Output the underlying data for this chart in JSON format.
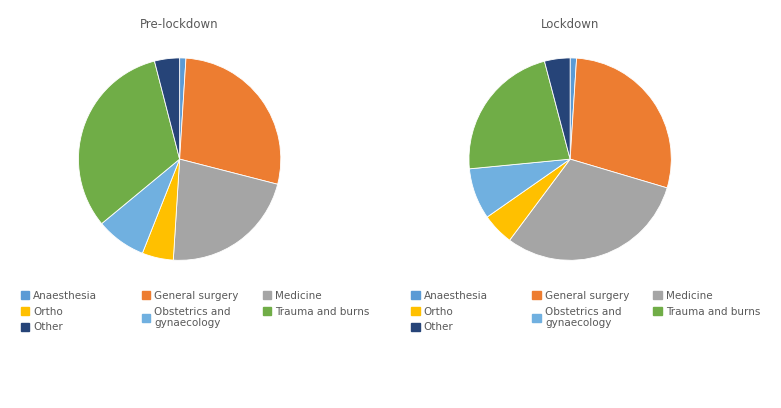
{
  "pre_lockdown": {
    "title": "Pre-lockdown",
    "values": [
      1,
      28,
      22,
      5,
      8,
      32,
      4
    ],
    "colors": [
      "#5b9bd5",
      "#ed7d31",
      "#a5a5a5",
      "#ffc000",
      "#70b0e0",
      "#70ad47",
      "#264478"
    ]
  },
  "lockdown": {
    "title": "Lockdown",
    "values": [
      1,
      28,
      30,
      5,
      8,
      22,
      4
    ],
    "colors": [
      "#5b9bd5",
      "#ed7d31",
      "#a5a5a5",
      "#ffc000",
      "#70b0e0",
      "#70ad47",
      "#264478"
    ]
  },
  "legend_labels": [
    "Anaesthesia",
    "General surgery",
    "Medicine",
    "Ortho",
    "Obstetrics and\ngynaecology",
    "Trauma and burns",
    "Other"
  ],
  "legend_colors": [
    "#5b9bd5",
    "#ed7d31",
    "#a5a5a5",
    "#ffc000",
    "#70b0e0",
    "#70ad47",
    "#264478"
  ],
  "title_fontsize": 8.5,
  "legend_fontsize": 7.5,
  "background_color": "#ffffff"
}
